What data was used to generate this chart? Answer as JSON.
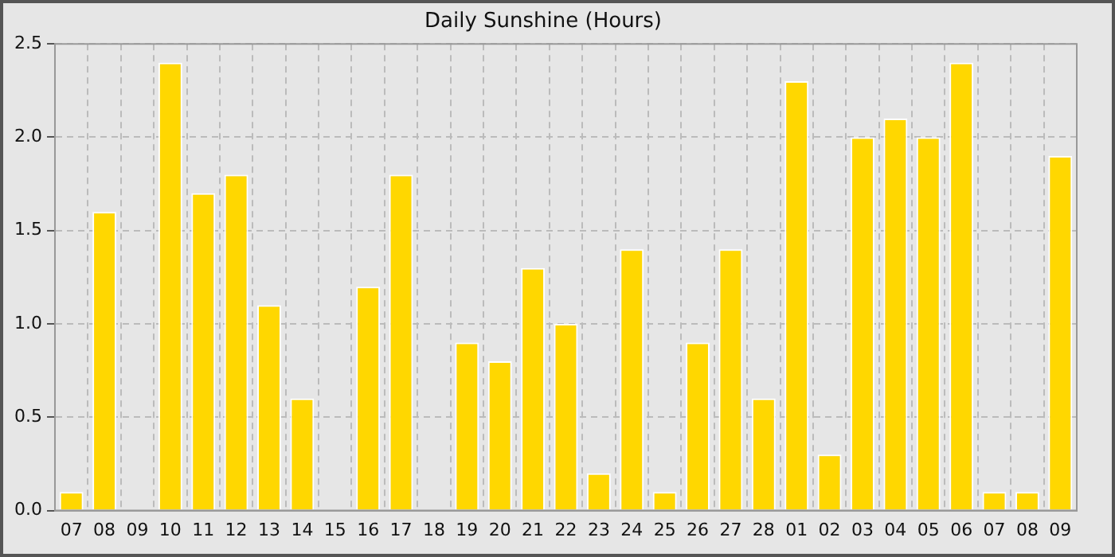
{
  "chart_data": {
    "type": "bar",
    "title": "Daily Sunshine (Hours)",
    "categories": [
      "07",
      "08",
      "09",
      "10",
      "11",
      "12",
      "13",
      "14",
      "15",
      "16",
      "17",
      "18",
      "19",
      "20",
      "21",
      "22",
      "23",
      "24",
      "25",
      "26",
      "27",
      "28",
      "01",
      "02",
      "03",
      "04",
      "05",
      "06",
      "07",
      "08",
      "09"
    ],
    "values": [
      0.1,
      1.6,
      0,
      2.4,
      1.7,
      1.8,
      1.1,
      0.6,
      0,
      1.2,
      1.8,
      0,
      0.9,
      0.8,
      1.3,
      1.0,
      0.2,
      1.4,
      0.1,
      0.9,
      1.4,
      0.6,
      2.3,
      0.3,
      2.0,
      2.1,
      2.0,
      2.4,
      0.1,
      0.1,
      1.9
    ],
    "color": "#ffd700",
    "ylim": [
      0,
      2.5
    ],
    "yticks": [
      {
        "value": 0,
        "label": "0.0"
      },
      {
        "value": 0.5,
        "label": "0.5"
      },
      {
        "value": 1,
        "label": "1.0"
      },
      {
        "value": 1.5,
        "label": "1.5"
      },
      {
        "value": 2,
        "label": "2.0"
      },
      {
        "value": 2.5,
        "label": "2.5"
      }
    ],
    "grid": true
  }
}
